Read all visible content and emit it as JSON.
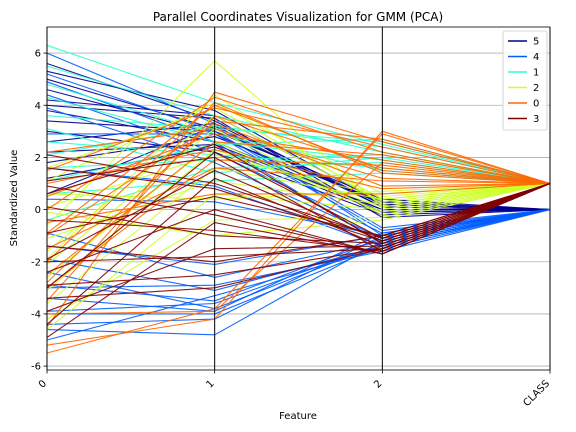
{
  "chart_data": {
    "type": "line",
    "title": "Parallel Coordinates Visualization for GMM (PCA)",
    "xlabel": "Feature",
    "ylabel": "Standardized Value",
    "categories": [
      "0",
      "1",
      "2",
      "CLASS"
    ],
    "ylim": [
      -6.15,
      7.0
    ],
    "yticks": [
      -6,
      -4,
      -2,
      0,
      2,
      4,
      6
    ],
    "grid": true,
    "legend_position": "top-right",
    "series": [
      {
        "name": "5",
        "color": "#00008f",
        "lines": [
          [
            5.6,
            3.4,
            0.1,
            0.0
          ],
          [
            5.0,
            3.1,
            0.2,
            0.0
          ],
          [
            4.6,
            2.9,
            -0.1,
            0.0
          ],
          [
            4.2,
            3.6,
            0.3,
            0.0
          ],
          [
            3.8,
            2.6,
            0.0,
            0.0
          ],
          [
            3.4,
            3.0,
            0.4,
            0.0
          ],
          [
            3.0,
            2.2,
            -0.2,
            0.0
          ],
          [
            2.6,
            3.3,
            0.2,
            0.0
          ],
          [
            2.2,
            2.5,
            0.0,
            0.0
          ],
          [
            1.8,
            2.8,
            0.3,
            0.0
          ],
          [
            1.2,
            2.4,
            -0.1,
            0.0
          ],
          [
            0.6,
            3.2,
            0.1,
            0.0
          ],
          [
            5.3,
            3.8,
            0.2,
            0.0
          ],
          [
            4.0,
            3.5,
            -0.3,
            0.0
          ]
        ]
      },
      {
        "name": "4",
        "color": "#005cff",
        "lines": [
          [
            6.0,
            3.3,
            -1.0,
            0.0
          ],
          [
            4.9,
            2.6,
            -1.3,
            0.0
          ],
          [
            3.9,
            1.8,
            -1.1,
            0.0
          ],
          [
            2.9,
            2.9,
            -0.8,
            0.0
          ],
          [
            1.6,
            0.9,
            -1.4,
            0.0
          ],
          [
            0.4,
            0.3,
            -1.0,
            0.0
          ],
          [
            -0.9,
            -2.6,
            -1.2,
            0.0
          ],
          [
            -1.9,
            -3.1,
            -1.4,
            0.0
          ],
          [
            -2.9,
            -3.5,
            -1.1,
            0.0
          ],
          [
            -3.9,
            -3.6,
            -1.3,
            0.0
          ],
          [
            -4.4,
            -4.2,
            -1.0,
            0.0
          ],
          [
            -5.0,
            -3.3,
            -1.5,
            0.0
          ],
          [
            -4.6,
            -4.8,
            -1.2,
            0.0
          ],
          [
            -3.4,
            -3.9,
            -0.9,
            0.0
          ],
          [
            -2.4,
            -3.8,
            -1.3,
            0.0
          ],
          [
            -1.4,
            -2.1,
            -1.0,
            0.0
          ],
          [
            5.2,
            3.0,
            -0.7,
            0.0
          ],
          [
            4.4,
            2.2,
            -0.9,
            0.0
          ],
          [
            -4.0,
            -4.0,
            -1.4,
            0.0
          ],
          [
            -3.0,
            -2.9,
            -1.6,
            0.0
          ]
        ]
      },
      {
        "name": "1",
        "color": "#29ffce",
        "lines": [
          [
            6.3,
            4.1,
            2.5,
            1.0
          ],
          [
            5.5,
            3.6,
            2.2,
            1.0
          ],
          [
            4.3,
            2.6,
            1.9,
            1.0
          ],
          [
            3.6,
            3.1,
            2.6,
            1.0
          ],
          [
            2.6,
            2.1,
            1.6,
            1.0
          ],
          [
            1.6,
            1.9,
            2.1,
            1.0
          ],
          [
            0.6,
            1.1,
            1.4,
            1.0
          ],
          [
            -0.4,
            1.6,
            1.8,
            1.0
          ],
          [
            2.1,
            3.2,
            2.4,
            1.0
          ],
          [
            4.8,
            2.9,
            1.5,
            1.0
          ],
          [
            3.1,
            1.4,
            2.0,
            1.0
          ],
          [
            1.1,
            2.5,
            2.7,
            1.0
          ]
        ]
      },
      {
        "name": "2",
        "color": "#ceff29",
        "lines": [
          [
            -0.6,
            5.7,
            0.1,
            1.0
          ],
          [
            1.1,
            4.1,
            0.6,
            1.0
          ],
          [
            -1.6,
            3.6,
            0.3,
            1.0
          ],
          [
            -2.6,
            2.6,
            -0.1,
            1.0
          ],
          [
            -3.6,
            1.6,
            0.4,
            1.0
          ],
          [
            -4.6,
            0.6,
            0.0,
            1.0
          ],
          [
            -4.2,
            -0.4,
            -0.3,
            1.0
          ],
          [
            0.1,
            2.1,
            0.5,
            1.0
          ],
          [
            -1.1,
            1.1,
            0.2,
            1.0
          ],
          [
            -2.1,
            3.1,
            -0.2,
            1.0
          ],
          [
            1.6,
            3.9,
            0.4,
            1.0
          ],
          [
            -3.1,
            2.3,
            0.1,
            1.0
          ],
          [
            -0.1,
            -1.0,
            -0.4,
            1.0
          ],
          [
            0.6,
            0.4,
            0.7,
            1.0
          ],
          [
            -1.9,
            4.4,
            0.2,
            1.0
          ]
        ]
      },
      {
        "name": "0",
        "color": "#ff6800",
        "lines": [
          [
            -5.5,
            -3.8,
            2.9,
            1.0
          ],
          [
            -4.5,
            4.5,
            2.6,
            1.0
          ],
          [
            -3.5,
            3.6,
            1.6,
            1.0
          ],
          [
            -2.5,
            2.6,
            2.1,
            1.0
          ],
          [
            -1.5,
            1.6,
            1.1,
            1.0
          ],
          [
            -0.5,
            0.6,
            0.6,
            1.0
          ],
          [
            0.5,
            2.9,
            1.9,
            1.0
          ],
          [
            1.5,
            3.9,
            2.4,
            1.0
          ],
          [
            -2.0,
            4.1,
            1.4,
            1.0
          ],
          [
            -1.0,
            3.3,
            0.9,
            1.0
          ],
          [
            -5.2,
            -4.2,
            3.0,
            1.0
          ],
          [
            -3.0,
            1.9,
            1.7,
            1.0
          ],
          [
            0.0,
            4.3,
            2.2,
            1.0
          ],
          [
            2.2,
            3.1,
            1.2,
            1.0
          ],
          [
            -4.0,
            -3.9,
            1.8,
            1.0
          ],
          [
            1.0,
            2.3,
            0.8,
            1.0
          ],
          [
            -2.8,
            3.4,
            2.7,
            1.0
          ],
          [
            -0.9,
            4.0,
            1.5,
            1.0
          ]
        ]
      },
      {
        "name": "3",
        "color": "#7f0000",
        "lines": [
          [
            -4.9,
            -0.5,
            -1.7,
            1.0
          ],
          [
            -3.9,
            -1.5,
            -1.4,
            1.0
          ],
          [
            -2.9,
            -2.5,
            -1.5,
            1.0
          ],
          [
            -1.9,
            1.5,
            -1.2,
            1.0
          ],
          [
            -0.9,
            0.5,
            -1.0,
            1.0
          ],
          [
            0.1,
            -1.0,
            -1.3,
            1.0
          ],
          [
            1.1,
            2.0,
            -1.6,
            1.0
          ],
          [
            2.1,
            1.0,
            -1.1,
            1.0
          ],
          [
            -3.4,
            -3.0,
            -1.5,
            1.0
          ],
          [
            -2.4,
            0.0,
            -1.7,
            1.0
          ],
          [
            -1.4,
            -2.0,
            -1.0,
            1.0
          ],
          [
            0.6,
            2.5,
            -1.3,
            1.0
          ],
          [
            -4.4,
            1.2,
            -1.4,
            1.0
          ],
          [
            -0.4,
            -0.8,
            -1.6,
            1.0
          ],
          [
            1.6,
            0.8,
            -1.2,
            1.0
          ],
          [
            -3.0,
            2.2,
            -1.1,
            1.0
          ],
          [
            -2.0,
            -1.8,
            -1.5,
            1.0
          ],
          [
            0.9,
            -0.2,
            -1.7,
            1.0
          ]
        ]
      }
    ]
  }
}
